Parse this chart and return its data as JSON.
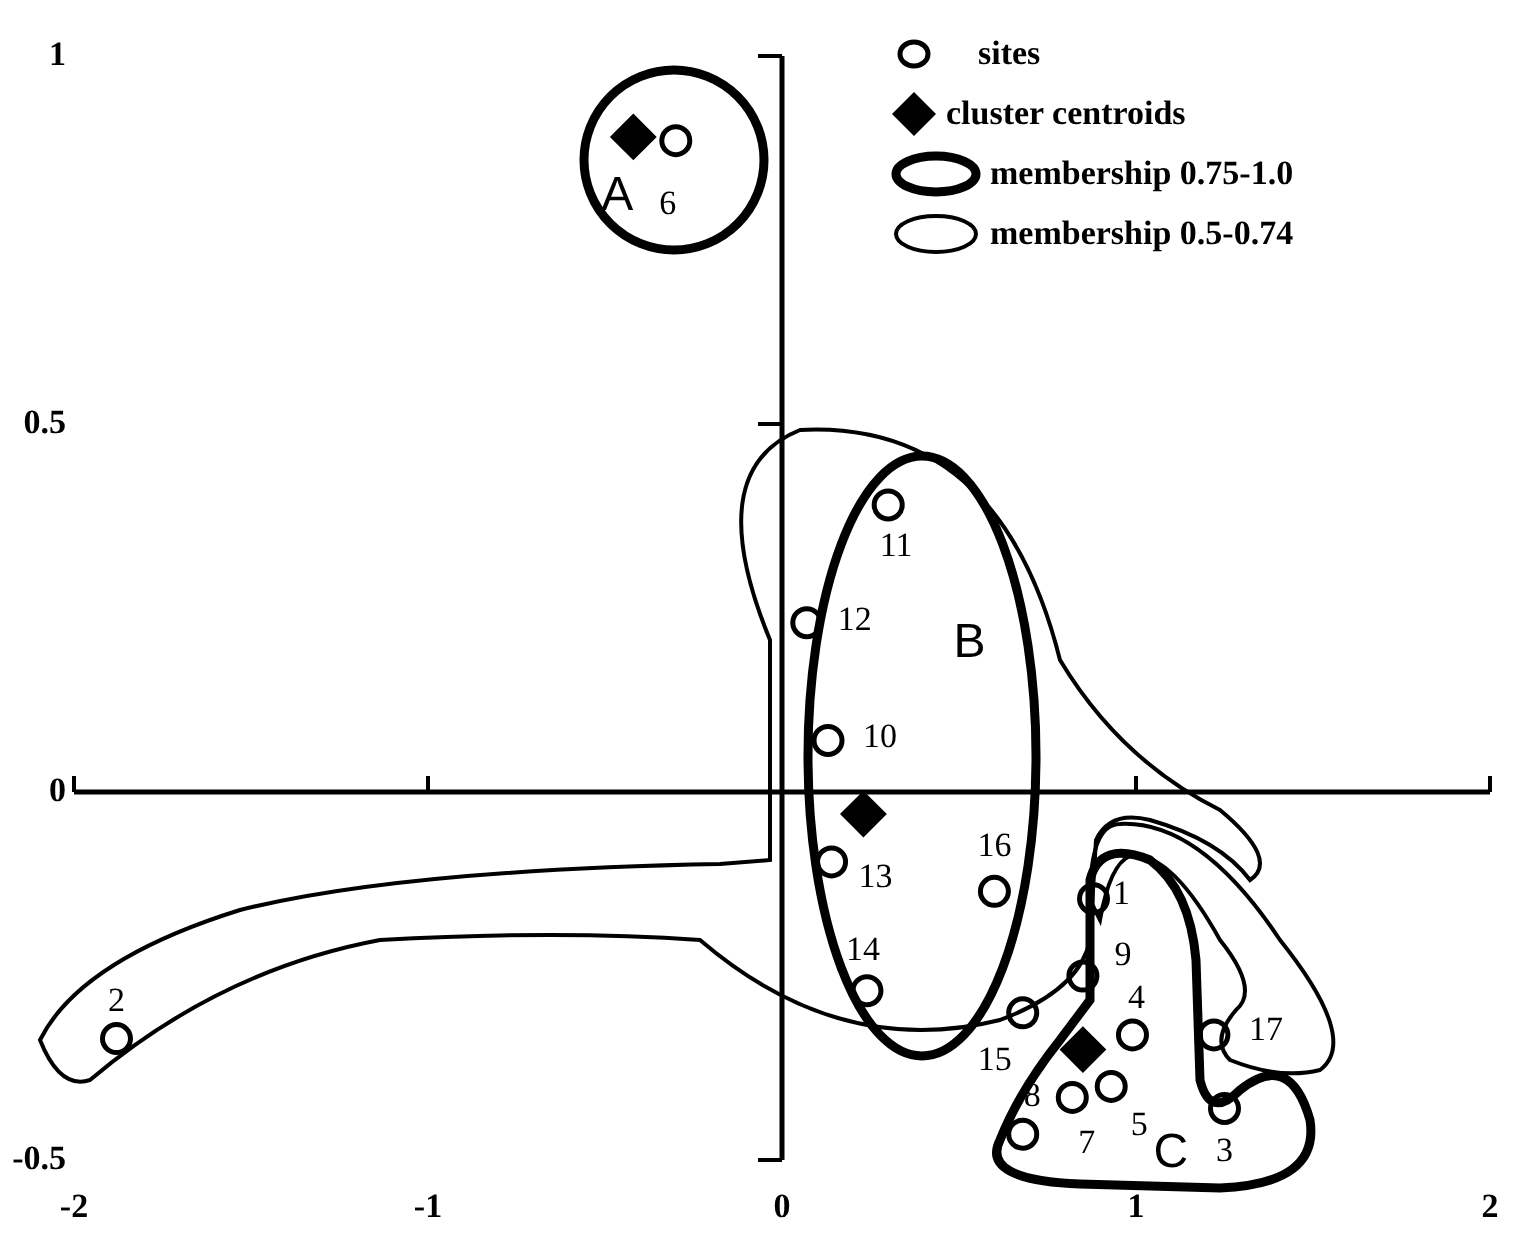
{
  "chart_data": {
    "type": "scatter",
    "xlim": [
      -2,
      2
    ],
    "ylim": [
      -0.5,
      1
    ],
    "xticks": [
      -2,
      -1,
      0,
      1,
      2
    ],
    "yticks": [
      -0.5,
      0,
      0.5,
      1
    ],
    "legend": "top right",
    "series": [
      {
        "name": "sites",
        "color": "#000000",
        "marker": "circle",
        "x": [
          0.88,
          -1.88,
          1.25,
          0.99,
          0.93,
          -0.3,
          0.68,
          0.82,
          0.85,
          0.13,
          0.3,
          0.07,
          0.14,
          0.24,
          0.68,
          0.6,
          1.22
        ],
        "values": [
          -0.145,
          -0.335,
          -0.43,
          -0.33,
          -0.4,
          0.885,
          -0.465,
          -0.415,
          -0.25,
          0.07,
          0.39,
          0.23,
          -0.095,
          -0.27,
          -0.3,
          -0.135,
          -0.33
        ]
      },
      {
        "name": "cluster centroids",
        "color": "#000000",
        "marker": "diamond",
        "x": [
          -0.42,
          0.23,
          0.85
        ],
        "values": [
          0.89,
          -0.03,
          -0.35
        ]
      }
    ],
    "annotations": [
      "membership 0.75-1.0",
      "membership 0.5-0.74",
      "A",
      "B",
      "C",
      {
        "text": "1",
        "x": 0.88,
        "y": -0.145
      },
      {
        "text": "2",
        "x": -1.88,
        "y": -0.335
      },
      {
        "text": "3",
        "x": 1.25,
        "y": -0.43
      },
      {
        "text": "4",
        "x": 0.99,
        "y": -0.33
      },
      {
        "text": "5",
        "x": 0.93,
        "y": -0.4
      },
      {
        "text": "6",
        "x": -0.3,
        "y": 0.885
      },
      {
        "text": "7",
        "x": 0.68,
        "y": -0.465
      },
      {
        "text": "8",
        "x": 0.82,
        "y": -0.415
      },
      {
        "text": "9",
        "x": 0.85,
        "y": -0.25
      },
      {
        "text": "10",
        "x": 0.13,
        "y": 0.07
      },
      {
        "text": "11",
        "x": 0.3,
        "y": 0.39
      },
      {
        "text": "12",
        "x": 0.07,
        "y": 0.23
      },
      {
        "text": "13",
        "x": 0.14,
        "y": -0.095
      },
      {
        "text": "14",
        "x": 0.24,
        "y": -0.27
      },
      {
        "text": "15",
        "x": 0.68,
        "y": -0.3
      },
      {
        "text": "16",
        "x": 0.6,
        "y": -0.135
      },
      {
        "text": "17",
        "x": 1.22,
        "y": -0.33
      }
    ]
  }
}
